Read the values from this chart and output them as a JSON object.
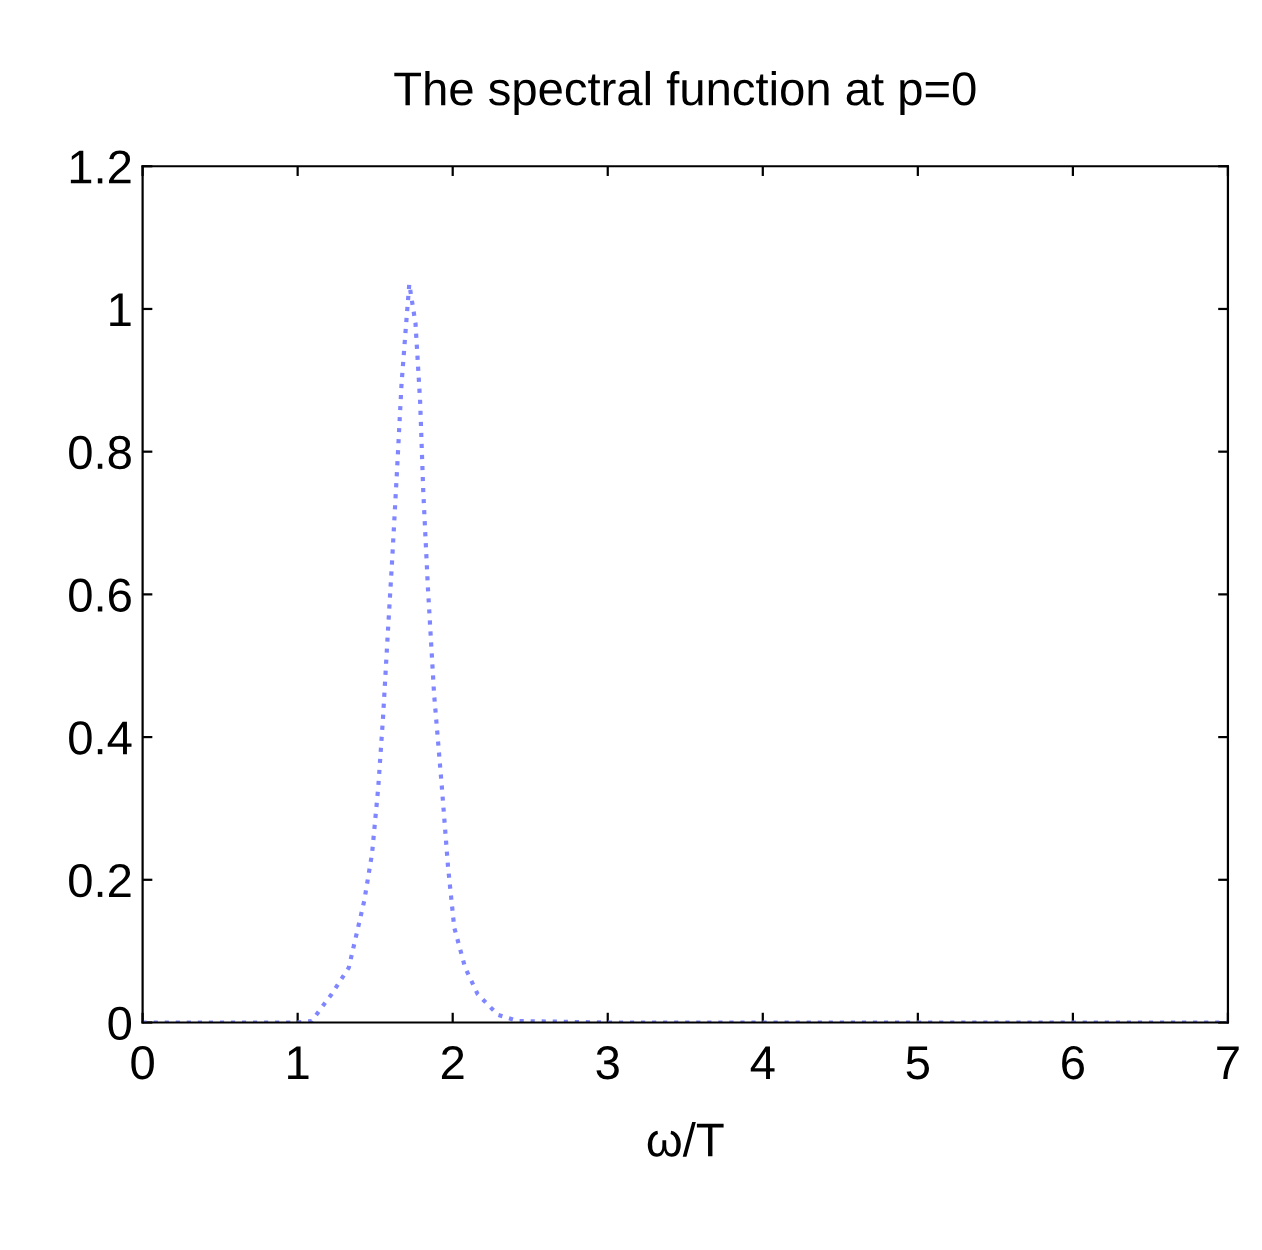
{
  "chart_data": {
    "type": "line",
    "title": "The spectral function at p=0",
    "xlabel": "ω/T",
    "series": [
      {
        "color": "#7f86ff",
        "x": [
          0,
          1.0,
          1.09,
          1.22,
          1.33,
          1.38,
          1.43,
          1.48,
          1.52,
          1.55,
          1.58,
          1.61,
          1.64,
          1.67,
          1.7,
          1.72,
          1.76,
          1.79,
          1.81,
          1.84,
          1.88,
          1.93,
          1.97,
          2.01,
          2.08,
          2.16,
          2.29,
          2.42,
          3,
          4,
          5,
          6,
          7
        ],
        "values": [
          0,
          0,
          0.002,
          0.04,
          0.077,
          0.124,
          0.171,
          0.237,
          0.33,
          0.425,
          0.54,
          0.65,
          0.77,
          0.895,
          0.98,
          1.035,
          0.98,
          0.87,
          0.745,
          0.61,
          0.46,
          0.33,
          0.218,
          0.133,
          0.077,
          0.04,
          0.011,
          0.002,
          0,
          0,
          0,
          0,
          0
        ]
      }
    ],
    "xlim": [
      0,
      7
    ],
    "ylim": [
      0,
      1.2
    ],
    "xticks": [
      0,
      1,
      2,
      3,
      4,
      5,
      6,
      7
    ],
    "yticks": [
      0,
      0.2,
      0.4,
      0.6,
      0.8,
      1,
      1.2
    ],
    "grid": false,
    "line_style": "dotted",
    "marker": "none"
  }
}
